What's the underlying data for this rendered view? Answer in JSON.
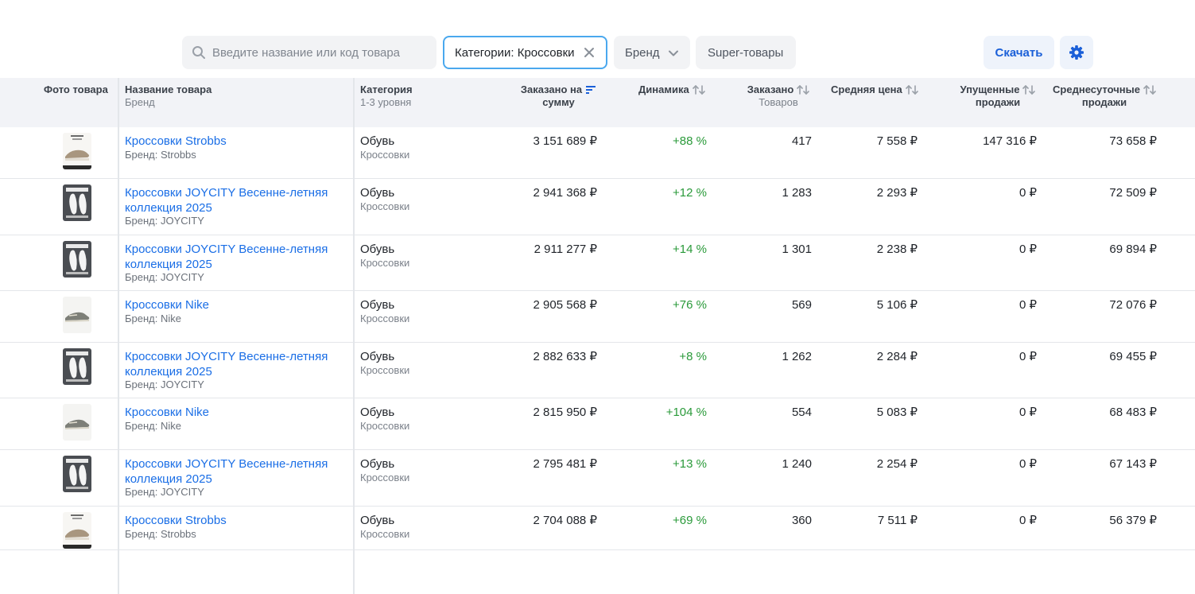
{
  "toolbar": {
    "search_placeholder": "Введите название или код товара",
    "category_chip": "Категории: Кроссовки",
    "brand_chip": "Бренд",
    "super_chip": "Super-товары",
    "download_label": "Скачать",
    "accent_color": "#1a5fd8"
  },
  "columns": {
    "photo": "Фото товара",
    "name": "Название товара",
    "name_sub": "Бренд",
    "category": "Категория",
    "category_sub": "1-3 уровня",
    "ordered_sum_l1": "Заказано на",
    "ordered_sum_l2": "сумму",
    "dynamics": "Динамика",
    "ordered": "Заказано",
    "ordered_sub": "Товаров",
    "avg_price": "Средняя цена",
    "lost_l1": "Упущенные",
    "lost_l2": "продажи",
    "daily_l1": "Среднесуточные",
    "daily_l2": "продажи"
  },
  "rows": [
    {
      "thumb": "strobbs",
      "name": "Кроссовки Strobbs",
      "brand": "Бренд: Strobbs",
      "category": "Обувь",
      "subcategory": "Кроссовки",
      "sum": "3 151 689 ₽",
      "dynamics": "+88 %",
      "ordered": "417",
      "avg_price": "7 558 ₽",
      "lost": "147 316 ₽",
      "daily": "73 658 ₽"
    },
    {
      "thumb": "joycity",
      "name": "Кроссовки JOYCITY Весенне-летняя коллекция 2025",
      "brand": "Бренд: JOYCITY",
      "category": "Обувь",
      "subcategory": "Кроссовки",
      "sum": "2 941 368 ₽",
      "dynamics": "+12 %",
      "ordered": "1 283",
      "avg_price": "2 293 ₽",
      "lost": "0 ₽",
      "daily": "72 509 ₽"
    },
    {
      "thumb": "joycity",
      "name": "Кроссовки JOYCITY Весенне-летняя коллекция 2025",
      "brand": "Бренд: JOYCITY",
      "category": "Обувь",
      "subcategory": "Кроссовки",
      "sum": "2 911 277 ₽",
      "dynamics": "+14 %",
      "ordered": "1 301",
      "avg_price": "2 238 ₽",
      "lost": "0 ₽",
      "daily": "69 894 ₽"
    },
    {
      "thumb": "nike",
      "name": "Кроссовки Nike",
      "brand": "Бренд: Nike",
      "category": "Обувь",
      "subcategory": "Кроссовки",
      "sum": "2 905 568 ₽",
      "dynamics": "+76 %",
      "ordered": "569",
      "avg_price": "5 106 ₽",
      "lost": "0 ₽",
      "daily": "72 076 ₽"
    },
    {
      "thumb": "joycity",
      "name": "Кроссовки JOYCITY Весенне-летняя коллекция 2025",
      "brand": "Бренд: JOYCITY",
      "category": "Обувь",
      "subcategory": "Кроссовки",
      "sum": "2 882 633 ₽",
      "dynamics": "+8 %",
      "ordered": "1 262",
      "avg_price": "2 284 ₽",
      "lost": "0 ₽",
      "daily": "69 455 ₽"
    },
    {
      "thumb": "nike",
      "name": "Кроссовки Nike",
      "brand": "Бренд: Nike",
      "category": "Обувь",
      "subcategory": "Кроссовки",
      "sum": "2 815 950 ₽",
      "dynamics": "+104 %",
      "ordered": "554",
      "avg_price": "5 083 ₽",
      "lost": "0 ₽",
      "daily": "68 483 ₽"
    },
    {
      "thumb": "joycity",
      "name": "Кроссовки JOYCITY Весенне-летняя коллекция 2025",
      "brand": "Бренд: JOYCITY",
      "category": "Обувь",
      "subcategory": "Кроссовки",
      "sum": "2 795 481 ₽",
      "dynamics": "+13 %",
      "ordered": "1 240",
      "avg_price": "2 254 ₽",
      "lost": "0 ₽",
      "daily": "67 143 ₽"
    },
    {
      "thumb": "strobbs",
      "name": "Кроссовки Strobbs",
      "brand": "Бренд: Strobbs",
      "category": "Обувь",
      "subcategory": "Кроссовки",
      "sum": "2 704 088 ₽",
      "dynamics": "+69 %",
      "ordered": "360",
      "avg_price": "7 511 ₽",
      "lost": "0 ₽",
      "daily": "56 379 ₽"
    }
  ]
}
